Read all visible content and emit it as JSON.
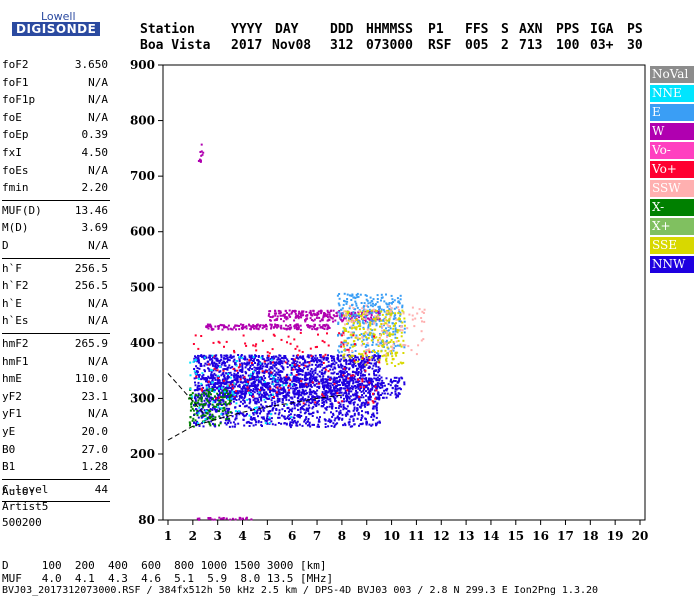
{
  "logo": {
    "line1": "Lowell",
    "line2": "DIGISONDE"
  },
  "header": {
    "labels": [
      "Station",
      "YYYY",
      "DAY",
      "DDD",
      "HHMMSS",
      "P1",
      "FFS",
      "S",
      "AXN",
      "PPS",
      "IGA",
      "PS"
    ],
    "values": [
      "Boa Vista",
      "2017",
      "Nov08",
      "312",
      "073000",
      "RSF",
      "005",
      "2",
      "713",
      "100",
      "03+",
      "30"
    ]
  },
  "params": [
    {
      "group": 0,
      "label": "foF2",
      "value": "3.650"
    },
    {
      "group": 0,
      "label": "foF1",
      "value": "N/A"
    },
    {
      "group": 0,
      "label": "foF1p",
      "value": "N/A"
    },
    {
      "group": 0,
      "label": "foE",
      "value": "N/A"
    },
    {
      "group": 0,
      "label": "foEp",
      "value": "0.39"
    },
    {
      "group": 0,
      "label": "fxI",
      "value": "4.50"
    },
    {
      "group": 0,
      "label": "foEs",
      "value": "N/A"
    },
    {
      "group": 0,
      "label": "fmin",
      "value": "2.20"
    },
    {
      "group": 1,
      "label": "MUF(D)",
      "value": "13.46"
    },
    {
      "group": 1,
      "label": "M(D)",
      "value": "3.69"
    },
    {
      "group": 1,
      "label": "D",
      "value": "N/A"
    },
    {
      "group": 2,
      "label": "h`F",
      "value": "256.5"
    },
    {
      "group": 2,
      "label": "h`F2",
      "value": "256.5"
    },
    {
      "group": 2,
      "label": "h`E",
      "value": "N/A"
    },
    {
      "group": 2,
      "label": "h`Es",
      "value": "N/A"
    },
    {
      "group": 3,
      "label": "hmF2",
      "value": "265.9"
    },
    {
      "group": 3,
      "label": "hmF1",
      "value": "N/A"
    },
    {
      "group": 3,
      "label": "hmE",
      "value": "110.0"
    },
    {
      "group": 3,
      "label": "yF2",
      "value": "23.1"
    },
    {
      "group": 3,
      "label": "yF1",
      "value": "N/A"
    },
    {
      "group": 3,
      "label": "yE",
      "value": "20.0"
    },
    {
      "group": 3,
      "label": "B0",
      "value": "27.0"
    },
    {
      "group": 3,
      "label": "B1",
      "value": "1.28"
    },
    {
      "group": 4,
      "label": "C-level",
      "value": "44"
    }
  ],
  "autoscale": {
    "line1": "Auto:",
    "line2": "Artist5",
    "line3": "500200"
  },
  "legend": [
    {
      "label": "NoVal",
      "color": "#8c8c8c"
    },
    {
      "label": "NNE",
      "color": "#00e5ff"
    },
    {
      "label": "E",
      "color": "#3a9ef5"
    },
    {
      "label": "W",
      "color": "#b000b0"
    },
    {
      "label": "Vo-",
      "color": "#ff40c0"
    },
    {
      "label": "Vo+",
      "color": "#ff0030"
    },
    {
      "label": "SSW",
      "color": "#ffb0b0"
    },
    {
      "label": "X-",
      "color": "#008000"
    },
    {
      "label": "X+",
      "color": "#80c060"
    },
    {
      "label": "SSE",
      "color": "#d8d800"
    },
    {
      "label": "NNW",
      "color": "#1e00e0"
    }
  ],
  "bottom": {
    "line1": "D     100  200  400  600  800 1000 1500 3000 [km]",
    "line2": "MUF   4.0  4.1  4.3  4.6  5.1  5.9  8.0 13.5 [MHz]",
    "line3": "BVJ03_2017312073000.RSF / 384fx512h 50 kHz 2.5 km / DPS-4D BVJ03 003 / 2.8 N 299.3 E Ion2Png 1.3.20"
  },
  "chart_data": {
    "type": "scatter",
    "xlabel": "",
    "ylabel": "",
    "xlim": [
      1,
      20
    ],
    "ylim": [
      80,
      900
    ],
    "x_ticks": [
      "1",
      "2",
      "3",
      "4",
      "5",
      "6",
      "7",
      "8",
      "9",
      "10",
      "11",
      "12",
      "13",
      "14",
      "15",
      "16",
      "17",
      "18",
      "19",
      "20"
    ],
    "y_ticks": [
      "80",
      "200",
      "300",
      "400",
      "500",
      "600",
      "700",
      "800",
      "900"
    ],
    "grid": false,
    "legend_placement": "right",
    "clusters": [
      {
        "name": "NNW",
        "x": [
          2.0,
          9.5
        ],
        "y": [
          250,
          380
        ],
        "n": 2200,
        "color": "#1e00e0"
      },
      {
        "name": "NNW",
        "x": [
          2.5,
          10.5
        ],
        "y": [
          300,
          340
        ],
        "n": 500,
        "color": "#1e00e0"
      },
      {
        "name": "W",
        "x": [
          2.5,
          7.5
        ],
        "y": [
          425,
          435
        ],
        "n": 180,
        "color": "#b000b0"
      },
      {
        "name": "W",
        "x": [
          5.0,
          9.5
        ],
        "y": [
          440,
          460
        ],
        "n": 260,
        "color": "#b000b0"
      },
      {
        "name": "E",
        "x": [
          7.8,
          10.5
        ],
        "y": [
          380,
          490
        ],
        "n": 320,
        "color": "#3a9ef5"
      },
      {
        "name": "SSE",
        "x": [
          8.0,
          10.5
        ],
        "y": [
          360,
          460
        ],
        "n": 220,
        "color": "#d8d800"
      },
      {
        "name": "SSW",
        "x": [
          8.0,
          11.3
        ],
        "y": [
          380,
          470
        ],
        "n": 100,
        "color": "#ffb0b0"
      },
      {
        "name": "Vo+",
        "x": [
          2.0,
          9.5
        ],
        "y": [
          290,
          420
        ],
        "n": 160,
        "color": "#ff0030"
      },
      {
        "name": "X-",
        "x": [
          1.8,
          3.5
        ],
        "y": [
          250,
          320
        ],
        "n": 140,
        "color": "#008000"
      },
      {
        "name": "NNE",
        "x": [
          1.8,
          6.0
        ],
        "y": [
          250,
          380
        ],
        "n": 90,
        "color": "#00e5ff"
      },
      {
        "name": "W",
        "x": [
          2.2,
          2.4
        ],
        "y": [
          720,
          760
        ],
        "n": 12,
        "color": "#b000b0"
      },
      {
        "name": "W",
        "x": [
          1.8,
          4.5
        ],
        "y": [
          82,
          86
        ],
        "n": 30,
        "color": "#b000b0"
      }
    ],
    "curves": [
      {
        "name": "lower",
        "x": [
          1,
          2,
          3,
          4,
          5,
          6,
          7,
          8
        ],
        "y": [
          225,
          250,
          263,
          275,
          285,
          292,
          300,
          306
        ]
      },
      {
        "name": "upper",
        "x": [
          1,
          1.5,
          2,
          2.5
        ],
        "y": [
          345,
          320,
          295,
          270
        ]
      }
    ]
  }
}
